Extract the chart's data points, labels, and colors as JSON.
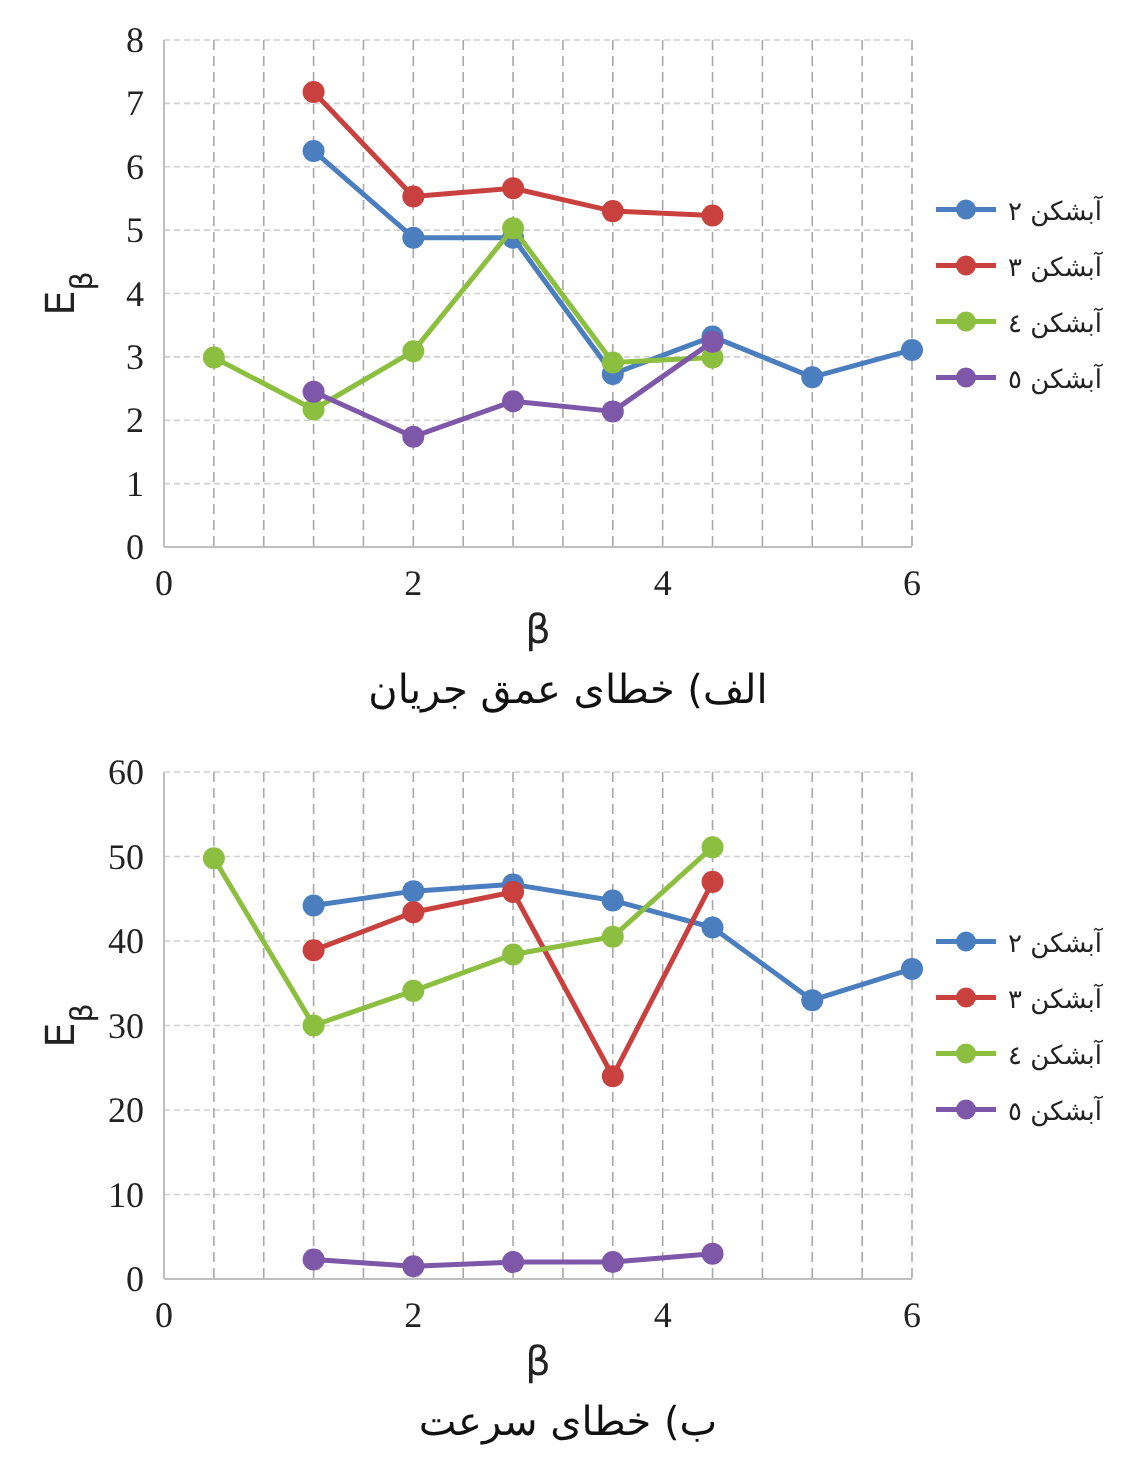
{
  "chart_data": [
    {
      "type": "line",
      "title": "الف) خطای عمق جریان",
      "xlabel": "β",
      "ylabel": "E$_{β}$",
      "xlim": [
        0,
        6
      ],
      "ylim": [
        0,
        8
      ],
      "xticks": [
        0,
        {
          "value": 0.4,
          "label": null
        },
        {
          "value": 0.8,
          "label": null
        },
        {
          "value": 1.2,
          "label": null
        },
        {
          "value": 1.6,
          "label": null
        },
        2,
        {
          "value": 2.4,
          "label": null
        },
        {
          "value": 2.8,
          "label": null
        },
        {
          "value": 3.2,
          "label": null
        },
        {
          "value": 3.6,
          "label": null
        },
        4,
        {
          "value": 4.4,
          "label": null
        },
        {
          "value": 4.8,
          "label": null
        },
        {
          "value": 5.2,
          "label": null
        },
        {
          "value": 5.6,
          "label": null
        },
        6
      ],
      "yticks": [
        0,
        1,
        2,
        3,
        4,
        5,
        6,
        7,
        8
      ],
      "grid": true,
      "legend": "right",
      "marker": "circle",
      "line_style": "solid",
      "series": [
        {
          "name": "آبشکن ٢",
          "color": "#4a7ebf",
          "x": [
            1.2,
            2.0,
            2.8,
            3.6,
            4.4,
            5.2,
            6.0
          ],
          "values": [
            6.25,
            4.88,
            4.88,
            2.73,
            3.32,
            2.68,
            3.11
          ]
        },
        {
          "name": "آبشکن ٣",
          "color": "#c9413e",
          "x": [
            1.2,
            2.0,
            2.8,
            3.6,
            4.4
          ],
          "values": [
            7.18,
            5.53,
            5.66,
            5.3,
            5.23
          ]
        },
        {
          "name": "آبشکن ٤",
          "color": "#8cbf3f",
          "x": [
            0.4,
            1.2,
            2.0,
            2.8,
            3.6,
            4.4
          ],
          "values": [
            2.99,
            2.17,
            3.09,
            5.03,
            2.91,
            2.99
          ]
        },
        {
          "name": "آبشکن ٥",
          "color": "#7e57a8",
          "x": [
            1.2,
            2.0,
            2.8,
            3.6,
            4.4
          ],
          "values": [
            2.45,
            1.74,
            2.3,
            2.14,
            3.24
          ]
        }
      ]
    },
    {
      "type": "line",
      "title": "ب) خطای سرعت",
      "xlabel": "β",
      "ylabel": "E$_{β}$",
      "xlim": [
        0,
        6
      ],
      "ylim": [
        0,
        60
      ],
      "xticks": [
        0,
        {
          "value": 0.4,
          "label": null
        },
        {
          "value": 0.8,
          "label": null
        },
        {
          "value": 1.2,
          "label": null
        },
        {
          "value": 1.6,
          "label": null
        },
        2,
        {
          "value": 2.4,
          "label": null
        },
        {
          "value": 2.8,
          "label": null
        },
        {
          "value": 3.2,
          "label": null
        },
        {
          "value": 3.6,
          "label": null
        },
        4,
        {
          "value": 4.4,
          "label": null
        },
        {
          "value": 4.8,
          "label": null
        },
        {
          "value": 5.2,
          "label": null
        },
        {
          "value": 5.6,
          "label": null
        },
        6
      ],
      "yticks": [
        0,
        10,
        20,
        30,
        40,
        50,
        60
      ],
      "grid": true,
      "legend": "right",
      "marker": "circle",
      "line_style": "solid",
      "series": [
        {
          "name": "آبشکن ٢",
          "color": "#4a7ebf",
          "x": [
            1.2,
            2.0,
            2.8,
            3.6,
            4.4,
            5.2,
            6.0
          ],
          "values": [
            44.2,
            45.9,
            46.7,
            44.8,
            41.6,
            33.0,
            36.7
          ]
        },
        {
          "name": "آبشکن ٣",
          "color": "#c9413e",
          "x": [
            1.2,
            2.0,
            2.8,
            3.6,
            4.4
          ],
          "values": [
            38.9,
            43.4,
            45.8,
            24.0,
            47.0
          ]
        },
        {
          "name": "آبشکن ٤",
          "color": "#8cbf3f",
          "x": [
            0.4,
            1.2,
            2.0,
            2.8,
            3.6,
            4.4
          ],
          "values": [
            49.8,
            30.0,
            34.1,
            38.4,
            40.5,
            51.1
          ]
        },
        {
          "name": "آبشکن ٥",
          "color": "#7e57a8",
          "x": [
            1.2,
            2.0,
            2.8,
            3.6,
            4.4
          ],
          "values": [
            2.3,
            1.5,
            2.0,
            2.0,
            3.0
          ]
        }
      ]
    }
  ]
}
